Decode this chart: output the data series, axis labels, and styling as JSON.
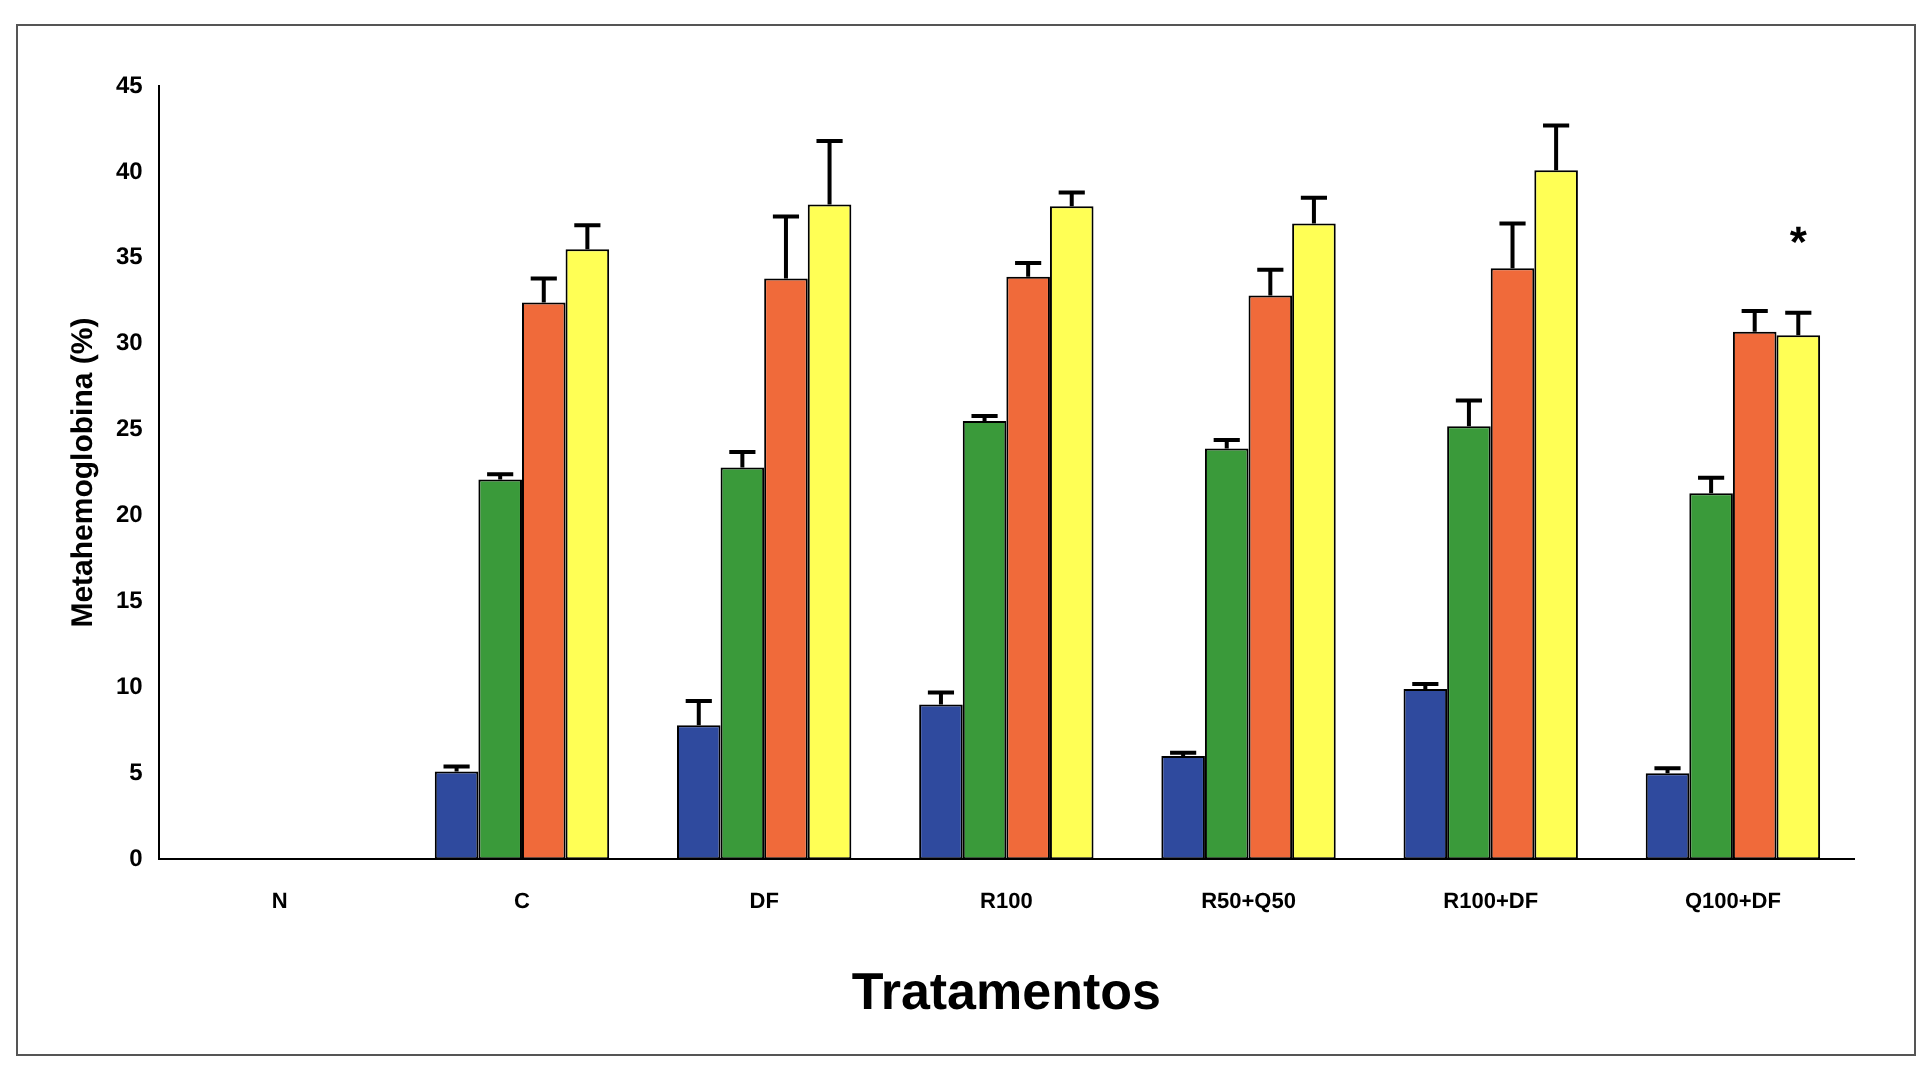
{
  "chart_data": {
    "type": "bar",
    "xlabel": "Tratamentos",
    "ylabel": "Metahemoglobina (%)",
    "categories": [
      "N",
      "C",
      "DF",
      "R100",
      "R50+Q50",
      "R100+DF",
      "Q100+DF"
    ],
    "ylim": [
      0,
      45
    ],
    "yticks": [
      0,
      5,
      10,
      15,
      20,
      25,
      30,
      35,
      40,
      45
    ],
    "grid": false,
    "legend": false,
    "series": [
      {
        "color": "#2f4a9e",
        "values": [
          0,
          5.1,
          7.8,
          9.0,
          6.0,
          9.9,
          5.0
        ],
        "errors": [
          null,
          [
            5.1,
            5.4
          ],
          [
            7.8,
            9.2
          ],
          [
            9.0,
            9.7
          ],
          [
            6.0,
            6.2
          ],
          [
            9.9,
            10.2
          ],
          [
            5.0,
            5.3
          ]
        ]
      },
      {
        "color": "#3a9a3a",
        "values": [
          0,
          22.1,
          22.8,
          25.5,
          23.9,
          25.2,
          21.3
        ],
        "errors": [
          null,
          [
            22.1,
            22.4
          ],
          [
            22.8,
            23.7
          ],
          [
            25.5,
            25.8
          ],
          [
            23.9,
            24.4
          ],
          [
            25.2,
            26.7
          ],
          [
            21.3,
            22.2
          ]
        ]
      },
      {
        "color": "#f06a3a",
        "values": [
          0,
          32.4,
          33.8,
          33.9,
          32.8,
          34.4,
          30.7
        ],
        "errors": [
          null,
          [
            32.4,
            33.8
          ],
          [
            33.8,
            37.4
          ],
          [
            33.9,
            34.7
          ],
          [
            32.8,
            34.3
          ],
          [
            34.4,
            37.0
          ],
          [
            30.7,
            31.9
          ]
        ]
      },
      {
        "color": "#ffff55",
        "values": [
          0,
          35.5,
          38.1,
          38.0,
          37.0,
          40.1,
          30.5
        ],
        "errors": [
          null,
          [
            35.5,
            36.9
          ],
          [
            38.1,
            41.8
          ],
          [
            38.0,
            38.8
          ],
          [
            37.0,
            38.5
          ],
          [
            40.1,
            42.7
          ],
          [
            30.5,
            31.8
          ]
        ]
      }
    ],
    "annotations": [
      "*"
    ]
  }
}
